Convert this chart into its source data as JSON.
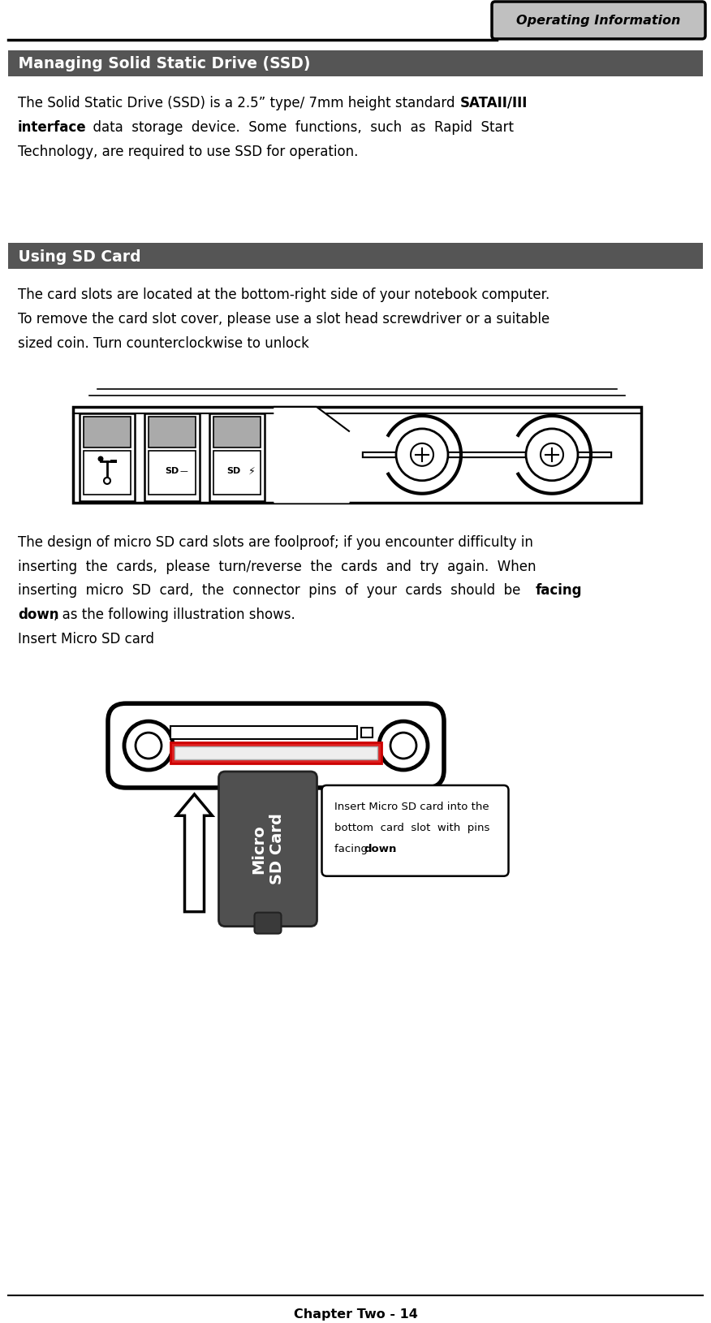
{
  "page_width": 8.76,
  "page_height": 16.29,
  "bg_color": "#ffffff",
  "header_tab_text": "Operating Information",
  "header_tab_bg": "#c0c0c0",
  "header_tab_border": "#000000",
  "section1_title": " Managing Solid Static Drive (SSD)",
  "section1_bg": "#555555",
  "section1_text_color": "#ffffff",
  "para1_line1": "The Solid Static Drive (SSD) is a 2.5” type/ 7mm height standard ",
  "para1_bold1": "SATAII/III",
  "para1_line2": "interface",
  "para1_line2_rest": "  data  storage  device.  Some  functions,  such  as  Rapid  Start",
  "para1_line3": "Technology, are required to use SSD for operation.",
  "section2_title": " Using SD Card",
  "section2_bg": "#555555",
  "section2_text_color": "#ffffff",
  "para2_line1": "The card slots are located at the bottom-right side of your notebook computer.",
  "para2_line2": "To remove the card slot cover, please use a slot head screwdriver or a suitable",
  "para2_line3": "sized coin. Turn counterclockwise to unlock",
  "para3_line1": "The design of micro SD card slots are foolproof; if you encounter difficulty in",
  "para3_line2": "inserting  the  cards,  please  turn/reverse  the  cards  and  try  again.  When",
  "para3_line3": "inserting  micro  SD  card,  the  connector  pins  of  your  cards  should  be ",
  "para3_bold": "facing",
  "para3_line4": "down",
  "para3_line4_rest": ", as the following illustration shows.",
  "para3_line5": "Insert Micro SD card",
  "callout_text1": "Insert Micro SD card into the",
  "callout_text2": "bottom  card  slot  with  pins",
  "callout_text3": "facing ",
  "callout_bold": "down",
  "callout_text3_rest": ".",
  "footer_text": "Chapter Two - 14",
  "card_label": "Micro\nSD Card",
  "card_color": "#505050",
  "card_color_bottom": "#3a3a3a",
  "red_slot_color": "#dd2020"
}
